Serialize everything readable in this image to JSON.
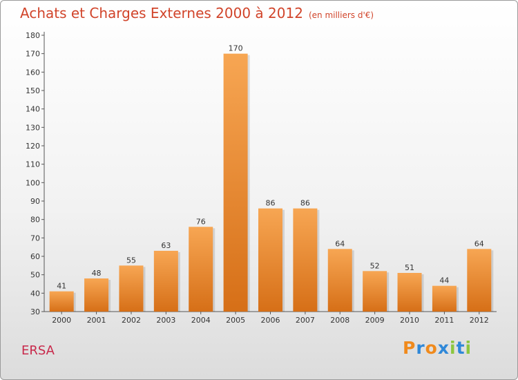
{
  "header": {
    "title": "Achats et Charges Externes 2000 à 2012",
    "unit": "(en milliers d'€)"
  },
  "footer": {
    "place": "ERSA",
    "brand": "Proxiti"
  },
  "colors": {
    "title": "#d1442a",
    "bar_top": "#f7a653",
    "bar_bottom": "#d66f17",
    "place": "#c8284a",
    "logo_letters": [
      "#f08a1c",
      "#2f88d8",
      "#f08a1c",
      "#2f88d8",
      "#8cc63f",
      "#2f88d8",
      "#8cc63f"
    ]
  },
  "chart_data": {
    "type": "bar",
    "categories": [
      "2000",
      "2001",
      "2002",
      "2003",
      "2004",
      "2005",
      "2006",
      "2007",
      "2008",
      "2009",
      "2010",
      "2011",
      "2012"
    ],
    "values": [
      41,
      48,
      55,
      63,
      76,
      170,
      86,
      86,
      64,
      52,
      51,
      44,
      64
    ],
    "ylim": [
      30,
      180
    ],
    "yticks": [
      30,
      40,
      50,
      60,
      70,
      80,
      90,
      100,
      110,
      120,
      130,
      140,
      150,
      160,
      170,
      180
    ],
    "grid": false,
    "legend": "none",
    "data_labels": true
  }
}
